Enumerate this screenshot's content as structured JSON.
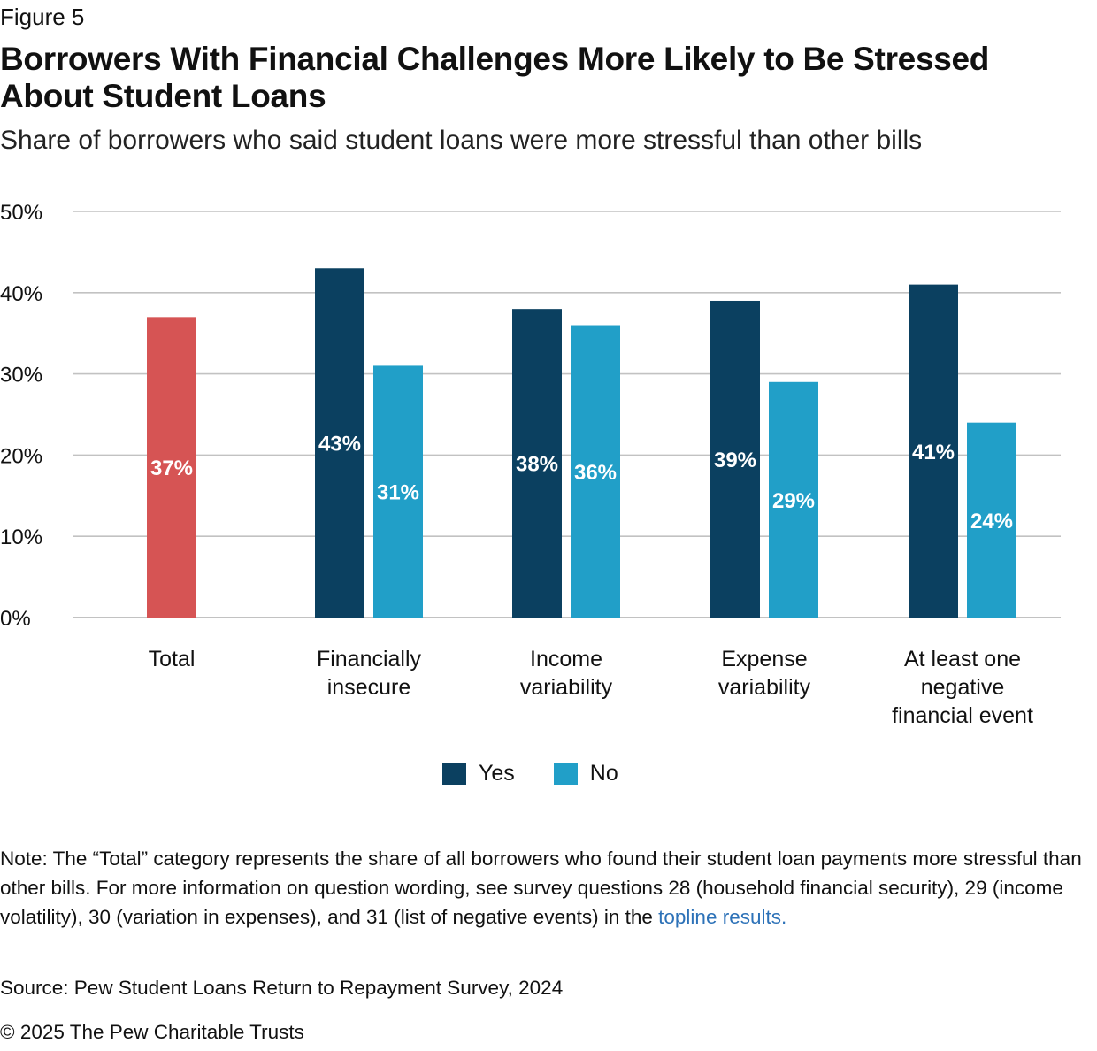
{
  "figure_label": "Figure 5",
  "title": "Borrowers With Financial Challenges More Likely to Be Stressed About Student Loans",
  "subtitle": "Share of borrowers who said student loans were more stressful than other bills",
  "colors": {
    "total": "#d65454",
    "yes": "#0b4060",
    "no": "#219fc8",
    "grid": "#c2c2c2",
    "link": "#2d72b8"
  },
  "chart_data": {
    "type": "bar",
    "ylim": [
      0,
      50
    ],
    "yticks": [
      0,
      10,
      20,
      30,
      40,
      50
    ],
    "ytick_labels": [
      "0%",
      "10%",
      "20%",
      "30%",
      "40%",
      "50%"
    ],
    "grid": true,
    "legend_position": "bottom-center",
    "categories": [
      [
        "Total"
      ],
      [
        "Financially",
        "insecure"
      ],
      [
        "Income",
        "variability"
      ],
      [
        "Expense",
        "variability"
      ],
      [
        "At least one",
        "negative",
        "financial event"
      ]
    ],
    "total": {
      "category_index": 0,
      "value": 37,
      "label": "37%"
    },
    "series": [
      {
        "name": "Yes",
        "values": [
          null,
          43,
          38,
          39,
          41
        ],
        "labels": [
          "",
          "43%",
          "38%",
          "39%",
          "41%"
        ]
      },
      {
        "name": "No",
        "values": [
          null,
          31,
          36,
          29,
          24
        ],
        "labels": [
          "",
          "31%",
          "36%",
          "29%",
          "24%"
        ]
      }
    ]
  },
  "note": {
    "text": "Note: The “Total” category represents the share of all borrowers who found their student loan payments more stressful than other bills. For more information on question wording, see survey questions 28 (household financial security), 29 (income volatility), 30 (variation in expenses), and 31 (list of negative events) in the",
    "link_text": "topline results."
  },
  "source": "Source: Pew Student Loans Return to Repayment Survey, 2024",
  "copyright": "© 2025 The Pew Charitable Trusts"
}
